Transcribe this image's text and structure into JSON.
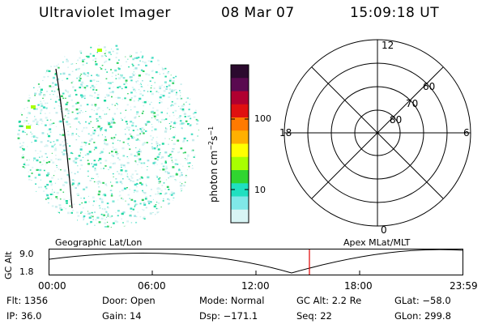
{
  "header": {
    "title": "Ultraviolet Imager",
    "date": "08 Mar 07",
    "time": "15:09:18 UT"
  },
  "colorbar": {
    "label_main": "photon cm",
    "label_exp1": "−2",
    "label_s": "s",
    "label_exp2": "−1",
    "ticks": [
      "100",
      "10"
    ],
    "colors": [
      "#2b0a2e",
      "#5a0a50",
      "#b00030",
      "#e01010",
      "#ff7a00",
      "#ffb000",
      "#ffff00",
      "#a8ff00",
      "#30d530",
      "#20e0c0",
      "#80e8e8",
      "#d8f4f4"
    ]
  },
  "polar_plot": {
    "mlt_labels": {
      "top": "12",
      "bottom": "0",
      "left": "18",
      "right": "6"
    },
    "lat_labels": [
      "80",
      "70",
      "60"
    ]
  },
  "timeline": {
    "left_label": "Geographic Lat/Lon",
    "right_label": "Apex MLat/MLT",
    "ylabel": "GC Alt",
    "y_ticks": [
      "9.0",
      "1.8"
    ],
    "x_ticks": [
      "00:00",
      "06:00",
      "12:00",
      "18:00",
      "23:59"
    ],
    "marker_color": "#e00000"
  },
  "info": {
    "flt": "Flt: 1356",
    "ip": "IP: 36.0",
    "door": "Door: Open",
    "gain": "Gain: 14",
    "mode": "Mode: Normal",
    "dsp": "Dsp: −171.1",
    "gcalt": "GC Alt: 2.2 Re",
    "seq": "Seq: 22",
    "glat": "GLat: −58.0",
    "glon": "GLon: 299.8"
  }
}
